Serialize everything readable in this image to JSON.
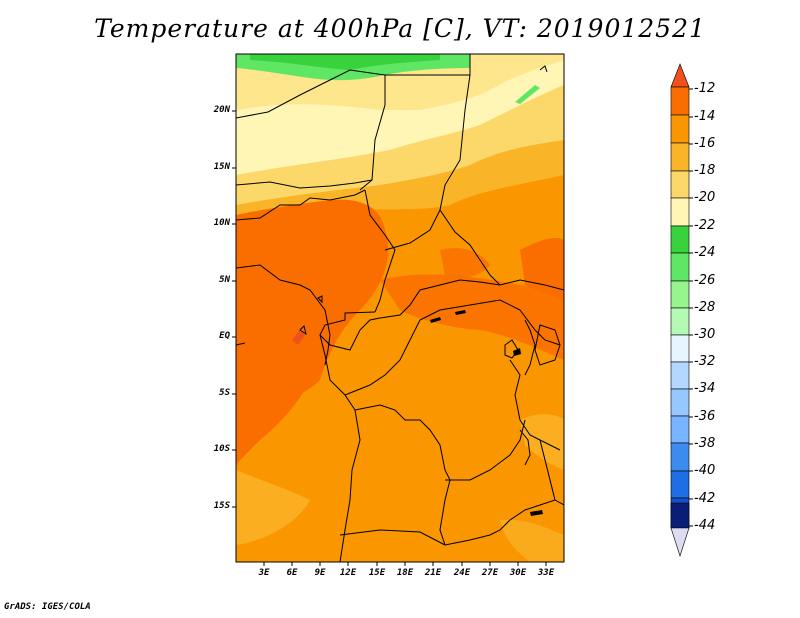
{
  "title": "Temperature at 400hPa [C], VT: 2019012521",
  "credit": "GrADS: IGES/COLA",
  "map": {
    "lat_labels": [
      "20N",
      "15N",
      "10N",
      "5N",
      "EQ",
      "5S",
      "10S",
      "15S"
    ],
    "lon_labels": [
      "3E",
      "6E",
      "9E",
      "12E",
      "15E",
      "18E",
      "21E",
      "24E",
      "27E",
      "30E",
      "33E"
    ]
  },
  "colorbar": {
    "labels": [
      "-12",
      "-14",
      "-16",
      "-18",
      "-20",
      "-22",
      "-24",
      "-26",
      "-28",
      "-30",
      "-32",
      "-34",
      "-36",
      "-38",
      "-40",
      "-42",
      "-44"
    ],
    "colors": {
      "above_-12": "#f0501e",
      "-12_-14": "#fa6e00",
      "-14_-16": "#fa9600",
      "-16_-18": "#fab428",
      "-18_-20": "#fcd86a",
      "-20_-22": "#fff5b4",
      "-22_-24": "#37d23c",
      "-24_-26": "#5fe664",
      "-26_-28": "#96f58c",
      "-28_-30": "#b4fab4",
      "-30_-32": "#e6f5ff",
      "-32_-34": "#b4d7ff",
      "-34_-36": "#96c8ff",
      "-36_-38": "#78b4ff",
      "-38_-40": "#3c8cf0",
      "-40_-42": "#1e6ee6",
      "-42_-44": "#1450c8",
      "below_-44": "#0a1e78",
      "below_tip": "#dcdcf0"
    }
  }
}
